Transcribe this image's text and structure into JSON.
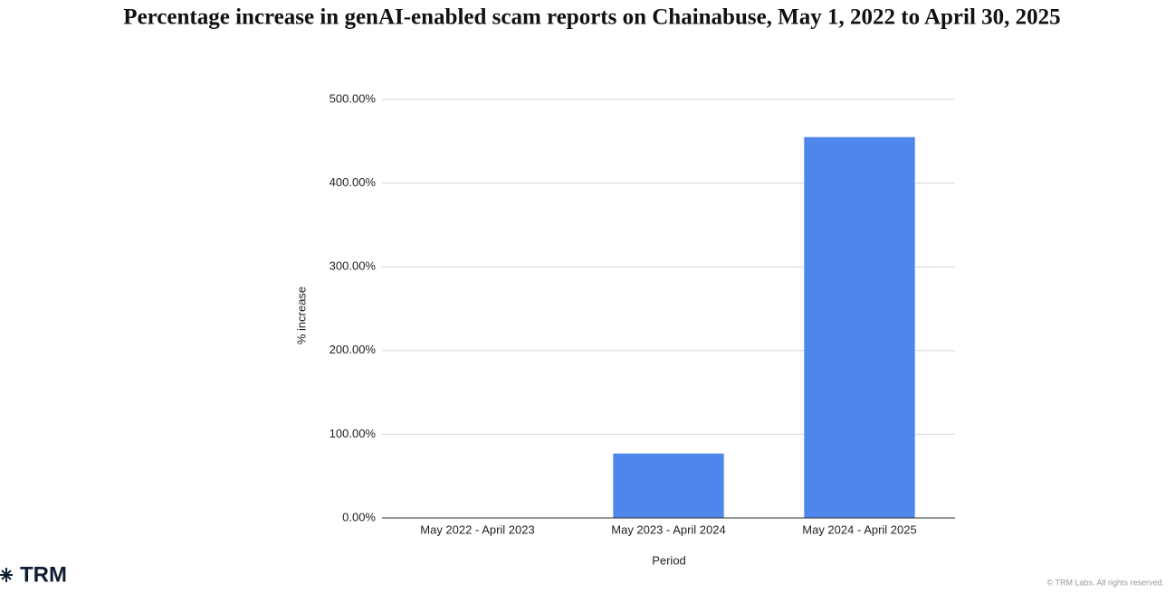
{
  "chart_data": {
    "type": "bar",
    "title": "Percentage increase in genAI-enabled scam reports on Chainabuse, May 1, 2022 to April 30, 2025",
    "x_label": "Period",
    "y_label": "% increase",
    "categories": [
      "May 2022 - April 2023",
      "May 2023 - April 2024",
      "May 2024 - April 2025"
    ],
    "values": [
      0,
      77,
      455
    ],
    "color": "#4f86ec",
    "ylim": [
      0,
      500
    ],
    "yticks": [
      {
        "value": 0,
        "label": "0.00%"
      },
      {
        "value": 100,
        "label": "100.00%"
      },
      {
        "value": 200,
        "label": "200.00%"
      },
      {
        "value": 300,
        "label": "300.00%"
      },
      {
        "value": 400,
        "label": "400.00%"
      },
      {
        "value": 500,
        "label": "500.00%"
      }
    ],
    "grid": true
  },
  "brand": "TRM",
  "copyright": "© TRM Labs. All rights reserved."
}
